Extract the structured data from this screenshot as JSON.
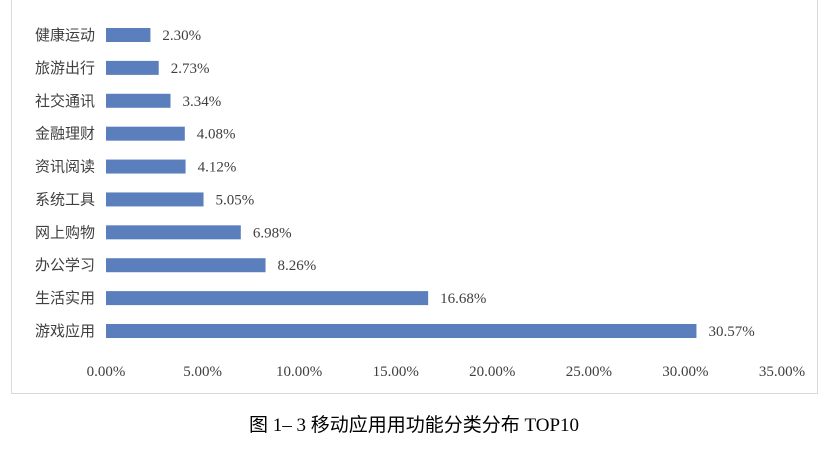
{
  "chart_data": {
    "type": "bar",
    "orientation": "horizontal",
    "categories": [
      "游戏应用",
      "生活实用",
      "办公学习",
      "网上购物",
      "系统工具",
      "资讯阅读",
      "金融理财",
      "社交通讯",
      "旅游出行",
      "健康运动"
    ],
    "values": [
      30.57,
      16.68,
      8.26,
      6.98,
      5.05,
      4.12,
      4.08,
      3.34,
      2.73,
      2.3
    ],
    "value_labels": [
      "30.57%",
      "16.68%",
      "8.26%",
      "6.98%",
      "5.05%",
      "4.12%",
      "4.08%",
      "3.34%",
      "2.73%",
      "2.30%"
    ],
    "xlim": [
      0,
      35
    ],
    "x_ticks": [
      0,
      5,
      10,
      15,
      20,
      25,
      30,
      35
    ],
    "x_tick_labels": [
      "0.00%",
      "5.00%",
      "10.00%",
      "15.00%",
      "20.00%",
      "25.00%",
      "30.00%",
      "35.00%"
    ],
    "grid": false,
    "legend": "none",
    "bar_color": "#5b7fbd"
  },
  "caption": "图 1– 3 移动应用用功能分类分布 TOP10"
}
